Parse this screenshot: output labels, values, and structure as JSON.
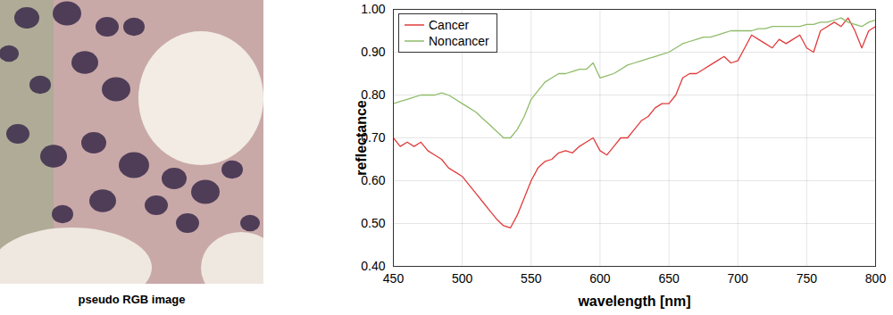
{
  "chart_data": {
    "type": "line",
    "x_label": "wavelength [nm]",
    "y_label": "reflectance",
    "xlim": [
      450,
      800
    ],
    "ylim": [
      0.4,
      1
    ],
    "xticks": [
      450,
      500,
      550,
      600,
      650,
      700,
      750,
      800
    ],
    "yticks": [
      0.4,
      0.5,
      0.6,
      0.7,
      0.8,
      0.9,
      1
    ],
    "grid": true,
    "legend": "upper left",
    "x": [
      450,
      455,
      460,
      465,
      470,
      475,
      480,
      485,
      490,
      495,
      500,
      505,
      510,
      515,
      520,
      525,
      530,
      535,
      540,
      545,
      550,
      555,
      560,
      565,
      570,
      575,
      580,
      585,
      590,
      595,
      600,
      605,
      610,
      615,
      620,
      625,
      630,
      635,
      640,
      645,
      650,
      655,
      660,
      665,
      670,
      675,
      680,
      685,
      690,
      695,
      700,
      705,
      710,
      715,
      720,
      725,
      730,
      735,
      740,
      745,
      750,
      755,
      760,
      765,
      770,
      775,
      780,
      785,
      790,
      795,
      800
    ],
    "series": [
      {
        "name": "Cancer",
        "color": "#e03c3c",
        "values": [
          0.7,
          0.68,
          0.69,
          0.68,
          0.69,
          0.67,
          0.66,
          0.65,
          0.63,
          0.62,
          0.61,
          0.59,
          0.57,
          0.55,
          0.53,
          0.51,
          0.495,
          0.49,
          0.52,
          0.56,
          0.6,
          0.63,
          0.645,
          0.65,
          0.665,
          0.67,
          0.665,
          0.68,
          0.69,
          0.7,
          0.67,
          0.66,
          0.68,
          0.7,
          0.7,
          0.72,
          0.74,
          0.75,
          0.77,
          0.78,
          0.78,
          0.8,
          0.84,
          0.85,
          0.85,
          0.86,
          0.87,
          0.88,
          0.89,
          0.875,
          0.88,
          0.91,
          0.94,
          0.93,
          0.92,
          0.91,
          0.93,
          0.92,
          0.93,
          0.94,
          0.91,
          0.9,
          0.95,
          0.96,
          0.97,
          0.96,
          0.98,
          0.95,
          0.91,
          0.95,
          0.96
        ]
      },
      {
        "name": "Noncancer",
        "color": "#8fbc6a",
        "values": [
          0.78,
          0.785,
          0.79,
          0.795,
          0.8,
          0.8,
          0.8,
          0.805,
          0.8,
          0.79,
          0.78,
          0.77,
          0.76,
          0.745,
          0.73,
          0.715,
          0.7,
          0.7,
          0.72,
          0.75,
          0.79,
          0.81,
          0.83,
          0.84,
          0.85,
          0.85,
          0.855,
          0.86,
          0.86,
          0.875,
          0.84,
          0.845,
          0.85,
          0.86,
          0.87,
          0.875,
          0.88,
          0.885,
          0.89,
          0.895,
          0.9,
          0.91,
          0.92,
          0.925,
          0.93,
          0.935,
          0.935,
          0.94,
          0.945,
          0.95,
          0.95,
          0.95,
          0.95,
          0.955,
          0.955,
          0.96,
          0.96,
          0.96,
          0.96,
          0.96,
          0.965,
          0.965,
          0.97,
          0.97,
          0.975,
          0.98,
          0.97,
          0.965,
          0.96,
          0.97,
          0.975
        ]
      }
    ]
  },
  "image_caption": "pseudo RGB image"
}
